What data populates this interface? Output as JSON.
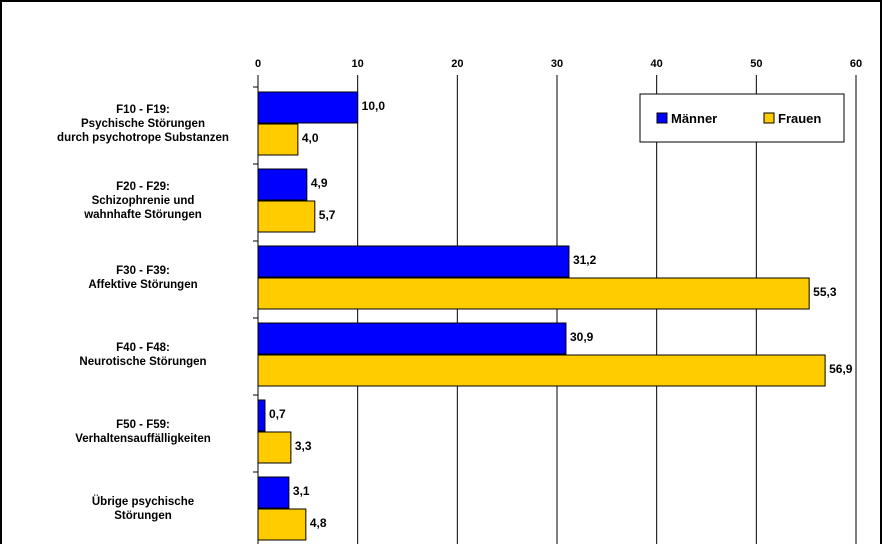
{
  "chart_data": {
    "type": "bar",
    "orientation": "horizontal",
    "title": "",
    "xlabel": "",
    "ylabel": "",
    "xlim": [
      0,
      60
    ],
    "ticks": [
      0,
      10,
      20,
      30,
      40,
      50,
      60
    ],
    "tick_labels": [
      "0",
      "10",
      "20",
      "30",
      "40",
      "50",
      "60"
    ],
    "x_axis_position": "top",
    "grid": true,
    "legend_position": "top-right",
    "categories": [
      {
        "id": "f10",
        "lines": [
          "F10 - F19:",
          "Psychische Störungen",
          "durch psychotrope Substanzen"
        ]
      },
      {
        "id": "f20",
        "lines": [
          "F20 - F29:",
          "Schizophrenie und",
          "wahnhafte Störungen"
        ]
      },
      {
        "id": "f30",
        "lines": [
          "F30 - F39:",
          "Affektive Störungen"
        ]
      },
      {
        "id": "f40",
        "lines": [
          "F40 - F48:",
          "Neurotische Störungen"
        ]
      },
      {
        "id": "f50",
        "lines": [
          "F50 - F59:",
          "Verhaltensauffälligkeiten"
        ]
      },
      {
        "id": "ubrige",
        "lines": [
          "Übrige psychische",
          "Störungen"
        ]
      }
    ],
    "series": [
      {
        "name": "Männer",
        "color": "#0000FF",
        "values": [
          10.0,
          4.9,
          31.2,
          30.9,
          0.7,
          3.1
        ],
        "value_labels": [
          "10,0",
          "4,9",
          "31,2",
          "30,9",
          "0,7",
          "3,1"
        ]
      },
      {
        "name": "Frauen",
        "color": "#FFCC00",
        "values": [
          4.0,
          5.7,
          55.3,
          56.9,
          3.3,
          4.8
        ],
        "value_labels": [
          "4,0",
          "5,7",
          "55,3",
          "56,9",
          "3,3",
          "4,8"
        ]
      }
    ]
  }
}
